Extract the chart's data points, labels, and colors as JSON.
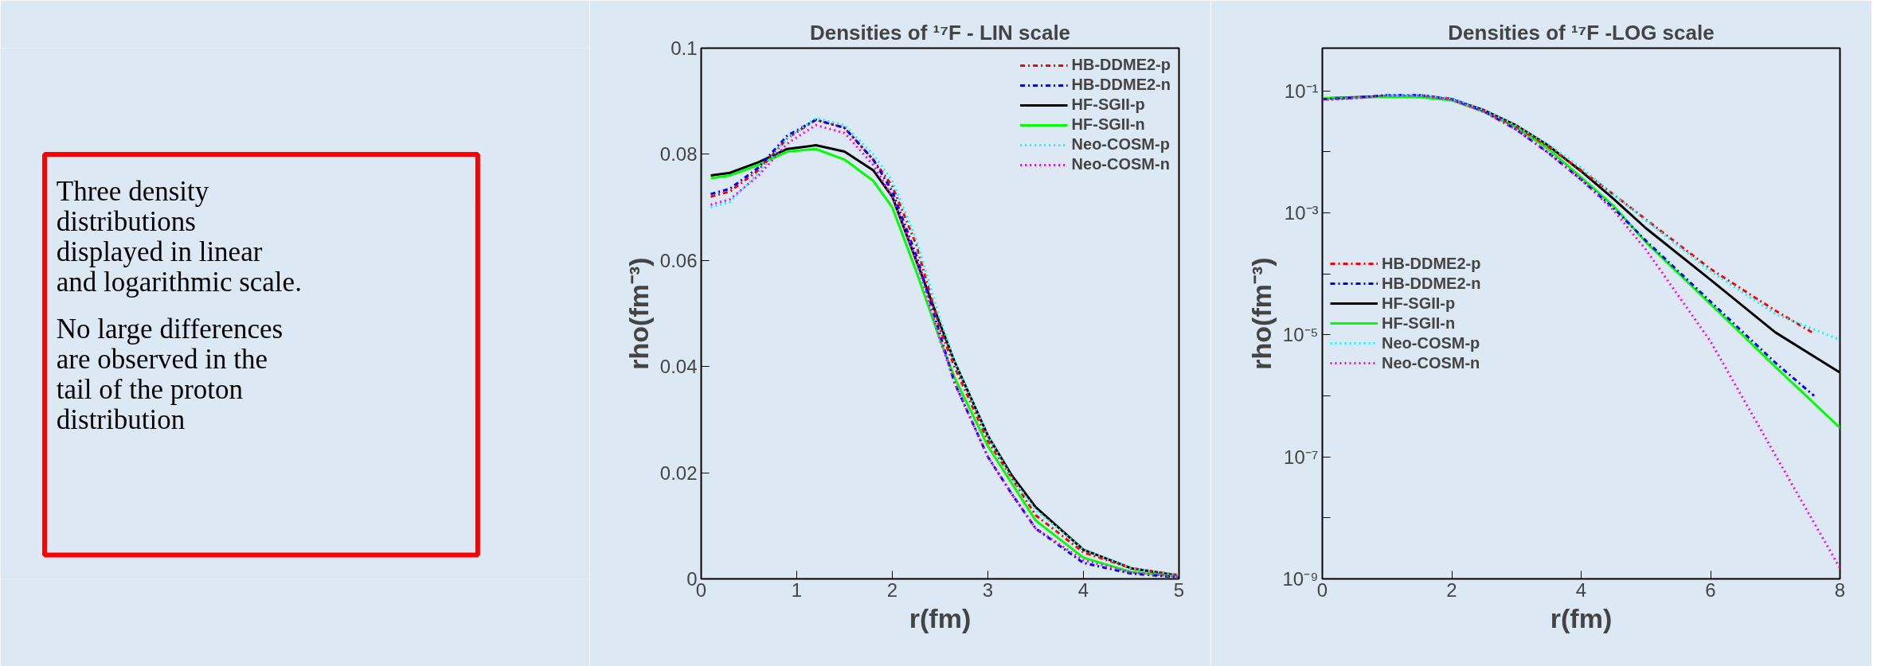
{
  "chart_data": [
    {
      "type": "other",
      "annotations": [
        "Three density distributions displayed in linear and logarithmic scale.",
        "No large differences are observed in the tail of the proton distribution"
      ]
    },
    {
      "type": "line",
      "title": "Densities of ¹⁷F - LIN scale",
      "xlabel": "r(fm)",
      "ylabel": "rho(fm⁻³)",
      "xlim": [
        0,
        5
      ],
      "ylim": [
        0,
        0.1
      ],
      "xticks": [
        0,
        1,
        2,
        3,
        4,
        5
      ],
      "yticks": [
        0,
        0.02,
        0.04,
        0.06,
        0.08,
        0.1
      ],
      "grid": false,
      "legend": "top right",
      "marker": "none",
      "x": [
        0.1,
        0.3,
        0.6,
        0.9,
        1.2,
        1.5,
        1.8,
        2.0,
        2.25,
        2.5,
        2.65,
        3.0,
        3.25,
        3.5,
        4.0,
        4.5,
        5.0
      ],
      "series": [
        {
          "name": "HB-DDME2-p",
          "color": "#ff0000",
          "line_style": "dashdot",
          "values": [
            0.072,
            0.073,
            0.077,
            0.083,
            0.0865,
            0.085,
            0.079,
            0.074,
            0.063,
            0.047,
            0.04,
            0.026,
            0.019,
            0.012,
            0.005,
            0.002,
            0.0007
          ]
        },
        {
          "name": "HB-DDME2-n",
          "color": "#0000ff",
          "line_style": "dashdot",
          "values": [
            0.0725,
            0.0735,
            0.0775,
            0.0835,
            0.0865,
            0.085,
            0.079,
            0.073,
            0.061,
            0.046,
            0.037,
            0.023,
            0.016,
            0.0095,
            0.003,
            0.001,
            0.0003
          ]
        },
        {
          "name": "HF-SGII-p",
          "color": "#000000",
          "line_style": "solid",
          "values": [
            0.076,
            0.0765,
            0.0785,
            0.081,
            0.0817,
            0.0805,
            0.077,
            0.072,
            0.06,
            0.048,
            0.041,
            0.027,
            0.0195,
            0.0135,
            0.0055,
            0.002,
            0.0006
          ]
        },
        {
          "name": "HF-SGII-n",
          "color": "#00ff00",
          "line_style": "solid",
          "values": [
            0.0755,
            0.076,
            0.078,
            0.0805,
            0.081,
            0.079,
            0.075,
            0.07,
            0.058,
            0.045,
            0.038,
            0.025,
            0.018,
            0.011,
            0.004,
            0.0013,
            0.0004
          ]
        },
        {
          "name": "Neo-COSM-p",
          "color": "#00ffff",
          "line_style": "dotted",
          "values": [
            0.07,
            0.071,
            0.0765,
            0.083,
            0.0868,
            0.0855,
            0.08,
            0.075,
            0.064,
            0.049,
            0.041,
            0.027,
            0.019,
            0.013,
            0.0055,
            0.002,
            0.0007
          ]
        },
        {
          "name": "Neo-COSM-n",
          "color": "#ff00ff",
          "line_style": "dotted",
          "values": [
            0.0705,
            0.0715,
            0.076,
            0.082,
            0.0855,
            0.084,
            0.078,
            0.072,
            0.06,
            0.045,
            0.037,
            0.023,
            0.016,
            0.0095,
            0.0035,
            0.0012,
            0.0004
          ]
        }
      ]
    },
    {
      "type": "line",
      "title": "Densities of ¹⁷F -LOG scale",
      "xlabel": "r(fm)",
      "ylabel": "rho(fm⁻³)",
      "log": "y",
      "xlim": [
        0,
        8
      ],
      "ylim": [
        1e-09,
        0.5
      ],
      "xticks": [
        0,
        2,
        4,
        6,
        8
      ],
      "yticks": [
        {
          "value": 0.1,
          "label": "10⁻¹"
        },
        {
          "value": 0.01,
          "label": null
        },
        {
          "value": 0.001,
          "label": "10⁻³"
        },
        {
          "value": 0.0001,
          "label": null
        },
        {
          "value": 1e-05,
          "label": "10⁻⁵"
        },
        {
          "value": 1e-06,
          "label": null
        },
        {
          "value": 1e-07,
          "label": "10⁻⁷"
        },
        {
          "value": 1e-08,
          "label": null
        },
        {
          "value": 1e-09,
          "label": "10⁻⁹"
        }
      ],
      "grid": false,
      "legend": "left",
      "marker": "none",
      "series": [
        {
          "name": "HB-DDME2-p",
          "color": "#ff0000",
          "line_style": "dashdot",
          "x": [
            1.5,
            2,
            2.5,
            3,
            3.5,
            4,
            4.5,
            5,
            6,
            7,
            7.6
          ],
          "values": [
            0.085,
            0.074,
            0.047,
            0.026,
            0.012,
            0.005,
            0.002,
            0.00078,
            0.00012,
            2.5e-05,
            1.05e-05
          ]
        },
        {
          "name": "HB-DDME2-n",
          "color": "#0000ff",
          "line_style": "dashdot",
          "x": [
            0,
            0.5,
            1,
            1.5,
            2,
            2.5,
            3,
            3.5,
            4,
            4.5,
            5,
            6,
            7,
            7.6
          ],
          "values": [
            0.0725,
            0.077,
            0.085,
            0.085,
            0.073,
            0.046,
            0.023,
            0.0095,
            0.0035,
            0.0012,
            0.00035,
            3.5e-05,
            3.5e-06,
            1e-06
          ]
        },
        {
          "name": "HF-SGII-p",
          "color": "#000000",
          "line_style": "solid",
          "x": [
            0,
            0.5,
            1,
            1.5,
            2,
            2.5,
            3,
            3.5,
            4,
            4.5,
            5,
            6,
            7,
            8
          ],
          "values": [
            0.075,
            0.078,
            0.081,
            0.0805,
            0.072,
            0.048,
            0.027,
            0.0125,
            0.0048,
            0.0017,
            0.00056,
            8e-05,
            1.1e-05,
            2.4e-06
          ]
        },
        {
          "name": "HF-SGII-n",
          "color": "#00ff00",
          "line_style": "solid",
          "x": [
            0,
            0.5,
            1,
            1.5,
            2,
            2.5,
            3,
            3.5,
            4,
            4.5,
            5,
            6,
            7,
            8
          ],
          "values": [
            0.0755,
            0.077,
            0.08,
            0.079,
            0.07,
            0.045,
            0.025,
            0.011,
            0.0038,
            0.0013,
            0.00033,
            3.2e-05,
            3e-06,
            3e-07
          ]
        },
        {
          "name": "Neo-COSM-p",
          "color": "#00ffff",
          "line_style": "dotted",
          "x": [
            1,
            1.5,
            2,
            2.5,
            3,
            3.5,
            4,
            4.5,
            5,
            6,
            7,
            8
          ],
          "values": [
            0.085,
            0.0855,
            0.075,
            0.049,
            0.027,
            0.013,
            0.0055,
            0.002,
            0.00075,
            0.00011,
            2.2e-05,
            8.3e-06
          ]
        },
        {
          "name": "Neo-COSM-n",
          "color": "#ff00ff",
          "line_style": "dotted",
          "x": [
            0,
            0.5,
            1,
            1.5,
            2,
            2.5,
            3,
            3.5,
            4,
            4.5,
            5,
            6,
            7,
            8
          ],
          "values": [
            0.0705,
            0.075,
            0.084,
            0.084,
            0.072,
            0.045,
            0.023,
            0.0095,
            0.0035,
            0.0011,
            0.00025,
            7.8e-06,
            1.07e-07,
            1.5e-09
          ]
        }
      ]
    }
  ]
}
